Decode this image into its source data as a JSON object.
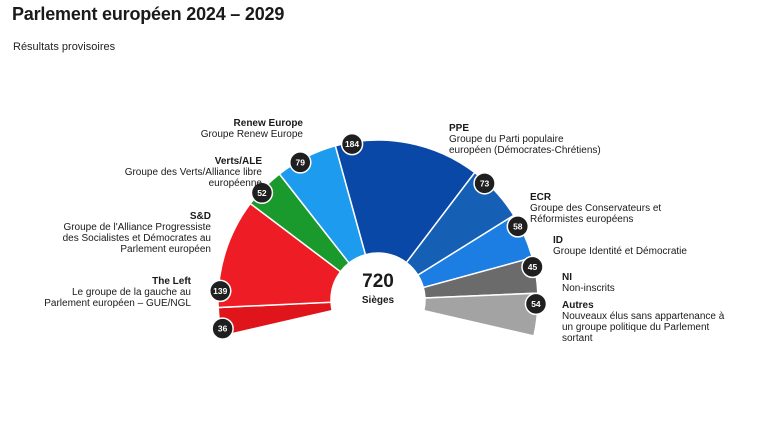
{
  "header": {
    "title": "Parlement européen 2024 – 2029",
    "subtitle": "Résultats provisoires"
  },
  "chart_data": {
    "type": "pie",
    "title": "Parlement européen 2024 – 2029",
    "subtitle": "Résultats provisoires",
    "total": 720,
    "total_label": "Sièges",
    "series": [
      {
        "name": "The Left",
        "description": [
          "Le groupe de la gauche au",
          "Parlement européen – GUE/NGL"
        ],
        "value": 36,
        "color": "#e0151b",
        "side": "left"
      },
      {
        "name": "S&D",
        "description": [
          "Groupe de l'Alliance Progressiste",
          "des Socialistes et Démocrates au",
          "Parlement européen"
        ],
        "value": 139,
        "color": "#ee1c25",
        "side": "left"
      },
      {
        "name": "Verts/ALE",
        "description": [
          "Groupe des Verts/Alliance libre",
          "européenne"
        ],
        "value": 52,
        "color": "#1a9a2c",
        "side": "left"
      },
      {
        "name": "Renew Europe",
        "description": [
          "Groupe Renew Europe"
        ],
        "value": 79,
        "color": "#1d9bef",
        "side": "left"
      },
      {
        "name": "PPE",
        "description": [
          "Groupe du Parti populaire",
          "européen (Démocrates-Chrétiens)"
        ],
        "value": 184,
        "color": "#0a48a8",
        "side": "right"
      },
      {
        "name": "ECR",
        "description": [
          "Groupe des Conservateurs et",
          "Réformistes européens"
        ],
        "value": 73,
        "color": "#1560b5",
        "side": "right"
      },
      {
        "name": "ID",
        "description": [
          "Groupe Identité et Démocratie"
        ],
        "value": 58,
        "color": "#1c7de2",
        "side": "right"
      },
      {
        "name": "NI",
        "description": [
          "Non-inscrits"
        ],
        "value": 45,
        "color": "#6b6b6b",
        "side": "right"
      },
      {
        "name": "Autres",
        "description": [
          "Nouveaux élus sans appartenance à",
          "un groupe politique du Parlement",
          "sortant"
        ],
        "value": 54,
        "color": "#a3a3a3",
        "side": "right"
      }
    ]
  }
}
